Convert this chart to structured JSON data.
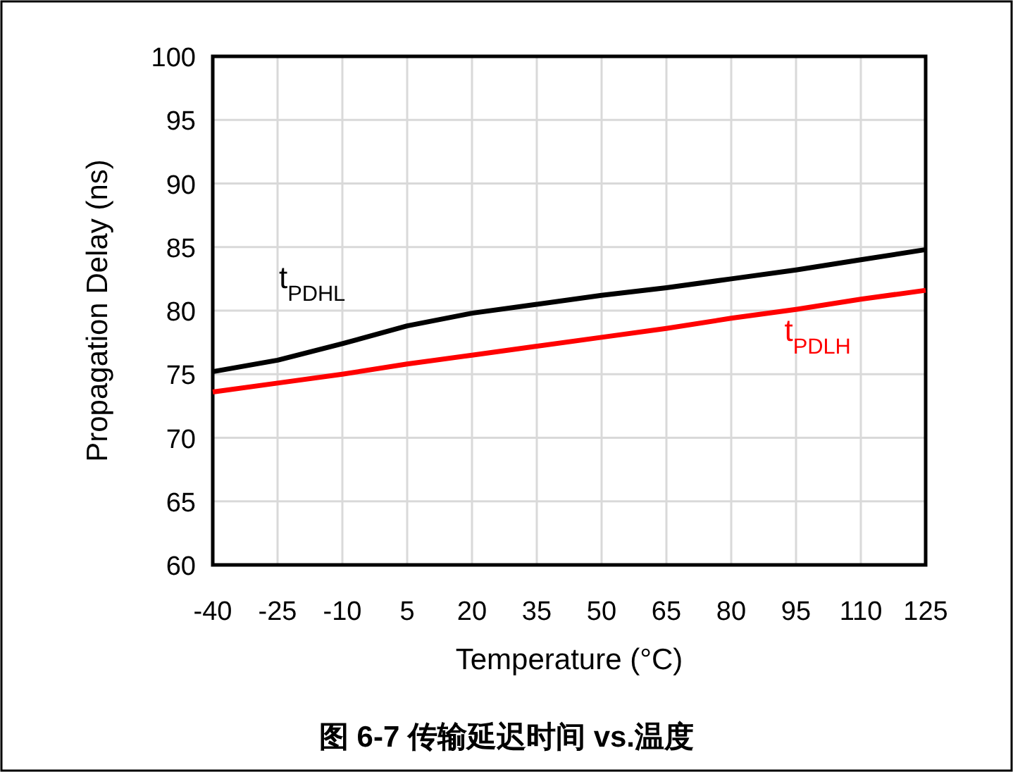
{
  "chart_data": {
    "type": "line",
    "xlabel": "Temperature (°C)",
    "ylabel": "Propagation Delay (ns)",
    "annotations": [
      "图 6-7 传输延迟时间 vs.温度"
    ],
    "x": [
      -40,
      -25,
      -10,
      5,
      20,
      35,
      50,
      65,
      80,
      95,
      110,
      125
    ],
    "series": [
      {
        "name": "t$_{PDHL}$",
        "color": "#000000",
        "values": [
          75.2,
          76.1,
          77.4,
          78.8,
          79.8,
          80.5,
          81.2,
          81.8,
          82.5,
          83.2,
          84.0,
          84.8
        ]
      },
      {
        "name": "t$_{PDLH}$",
        "color": "#ff0000",
        "values": [
          73.6,
          74.3,
          75.0,
          75.8,
          76.5,
          77.2,
          77.9,
          78.6,
          79.4,
          80.1,
          80.9,
          81.6
        ]
      }
    ],
    "xlim": [
      -40,
      125
    ],
    "xticks": [
      -40,
      -25,
      -10,
      5,
      20,
      35,
      50,
      65,
      80,
      95,
      110,
      125
    ],
    "ylim": [
      60,
      100
    ],
    "yticks": [
      60,
      65,
      70,
      75,
      80,
      85,
      90,
      95,
      100
    ],
    "grid": true,
    "line_style": "solid"
  }
}
